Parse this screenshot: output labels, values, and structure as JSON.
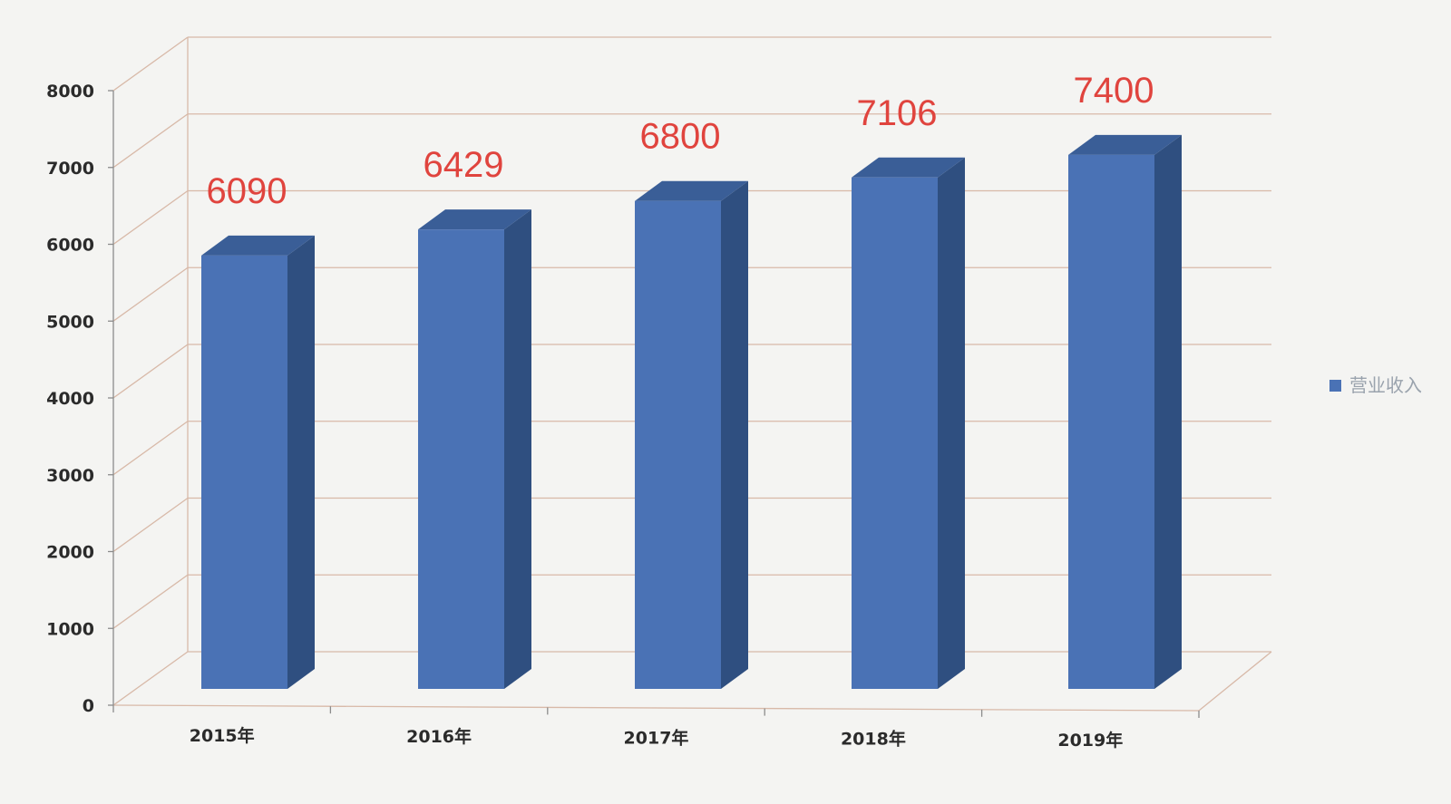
{
  "chart_data": {
    "type": "bar",
    "style": "3d-column",
    "categories": [
      "2015年",
      "2016年",
      "2017年",
      "2018年",
      "2019年"
    ],
    "series": [
      {
        "name": "营业收入",
        "values": [
          6090,
          6429,
          6800,
          7106,
          7400
        ]
      }
    ],
    "data_labels": [
      "6090",
      "6429",
      "6800",
      "7106",
      "7400"
    ],
    "y_ticks": [
      "0",
      "1000",
      "2000",
      "3000",
      "4000",
      "5000",
      "6000",
      "7000",
      "8000"
    ],
    "ylim": [
      0,
      8000
    ],
    "title": "",
    "xlabel": "",
    "ylabel": "",
    "grid": true,
    "legend_position": "right",
    "colors": {
      "bar_front": "#4a72b5",
      "bar_side": "#2f4f80",
      "bar_top": "#3a5e97",
      "data_label": "#e0443e",
      "grid": "#d8b9a8",
      "legend_marker": "#4a72b5"
    }
  }
}
